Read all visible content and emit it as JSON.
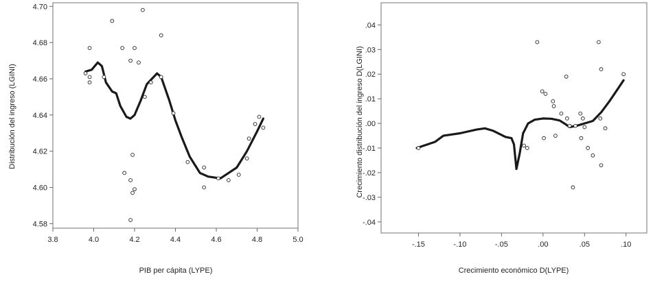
{
  "chart_data": [
    {
      "type": "scatter",
      "title": "",
      "xlabel": "PIB per cápita (LYPE)",
      "ylabel": "Distribución del ingreso (LGINI)",
      "xlim": [
        3.8,
        5.0
      ],
      "ylim": [
        4.5775,
        4.702
      ],
      "xticks": [
        3.8,
        4.0,
        4.2,
        4.4,
        4.6,
        4.8,
        5.0
      ],
      "xtick_labels": [
        "3.8",
        "4.0",
        "4.2",
        "4.4",
        "4.6",
        "4.8",
        "5.0"
      ],
      "yticks": [
        4.58,
        4.6,
        4.62,
        4.64,
        4.66,
        4.68,
        4.7
      ],
      "ytick_labels": [
        "4.58",
        "4.60",
        "4.62",
        "4.64",
        "4.66",
        "4.68",
        "4.70"
      ],
      "grid": false,
      "points": [
        [
          3.96,
          4.663
        ],
        [
          3.98,
          4.677
        ],
        [
          3.98,
          4.661
        ],
        [
          3.98,
          4.658
        ],
        [
          4.05,
          4.661
        ],
        [
          4.09,
          4.692
        ],
        [
          4.14,
          4.677
        ],
        [
          4.24,
          4.698
        ],
        [
          4.2,
          4.677
        ],
        [
          4.18,
          4.67
        ],
        [
          4.22,
          4.669
        ],
        [
          4.33,
          4.684
        ],
        [
          4.33,
          4.661
        ],
        [
          4.28,
          4.658
        ],
        [
          4.25,
          4.65
        ],
        [
          4.39,
          4.641
        ],
        [
          4.19,
          4.618
        ],
        [
          4.15,
          4.608
        ],
        [
          4.18,
          4.604
        ],
        [
          4.2,
          4.599
        ],
        [
          4.19,
          4.597
        ],
        [
          4.18,
          4.582
        ],
        [
          4.46,
          4.614
        ],
        [
          4.54,
          4.611
        ],
        [
          4.54,
          4.6
        ],
        [
          4.61,
          4.605
        ],
        [
          4.66,
          4.604
        ],
        [
          4.71,
          4.607
        ],
        [
          4.75,
          4.616
        ],
        [
          4.76,
          4.627
        ],
        [
          4.79,
          4.635
        ],
        [
          4.81,
          4.639
        ],
        [
          4.83,
          4.633
        ]
      ],
      "smooth_line": [
        [
          3.96,
          4.664
        ],
        [
          3.99,
          4.665
        ],
        [
          4.02,
          4.669
        ],
        [
          4.04,
          4.667
        ],
        [
          4.06,
          4.658
        ],
        [
          4.09,
          4.653
        ],
        [
          4.11,
          4.652
        ],
        [
          4.13,
          4.645
        ],
        [
          4.16,
          4.639
        ],
        [
          4.18,
          4.638
        ],
        [
          4.2,
          4.64
        ],
        [
          4.23,
          4.648
        ],
        [
          4.26,
          4.657
        ],
        [
          4.31,
          4.663
        ],
        [
          4.33,
          4.661
        ],
        [
          4.37,
          4.648
        ],
        [
          4.4,
          4.637
        ],
        [
          4.43,
          4.628
        ],
        [
          4.47,
          4.617
        ],
        [
          4.52,
          4.608
        ],
        [
          4.56,
          4.606
        ],
        [
          4.62,
          4.605
        ],
        [
          4.66,
          4.608
        ],
        [
          4.7,
          4.611
        ],
        [
          4.75,
          4.62
        ],
        [
          4.8,
          4.631
        ],
        [
          4.83,
          4.638
        ]
      ]
    },
    {
      "type": "scatter",
      "title": "",
      "xlabel": "Crecimiento económico D(LYPE)",
      "ylabel": "Crecimiento distribución del ingreso D(LGINI)",
      "xlim": [
        -0.195,
        0.125
      ],
      "ylim": [
        -0.0445,
        0.049
      ],
      "xticks": [
        -0.15,
        -0.1,
        -0.05,
        0.0,
        0.05,
        0.1
      ],
      "xtick_labels": [
        "-.15",
        "-.10",
        "-.05",
        ".00",
        ".05",
        ".10"
      ],
      "yticks": [
        -0.04,
        -0.03,
        -0.02,
        -0.01,
        0.0,
        0.01,
        0.02,
        0.03,
        0.04
      ],
      "ytick_labels": [
        "-.04",
        "-.03",
        "-.02",
        "-.01",
        ".00",
        ".01",
        ".02",
        ".03",
        ".04"
      ],
      "grid": false,
      "points": [
        [
          -0.15,
          -0.01
        ],
        [
          -0.007,
          0.033
        ],
        [
          0.067,
          0.033
        ],
        [
          0.07,
          0.022
        ],
        [
          0.097,
          0.02
        ],
        [
          0.028,
          0.019
        ],
        [
          -0.001,
          0.013
        ],
        [
          0.003,
          0.012
        ],
        [
          0.012,
          0.009
        ],
        [
          0.013,
          0.007
        ],
        [
          0.022,
          0.004
        ],
        [
          0.029,
          0.002
        ],
        [
          0.045,
          0.004
        ],
        [
          0.048,
          0.002
        ],
        [
          0.069,
          0.002
        ],
        [
          0.032,
          -0.001
        ],
        [
          0.039,
          -0.001
        ],
        [
          0.05,
          -0.0015
        ],
        [
          0.075,
          -0.002
        ],
        [
          0.015,
          -0.005
        ],
        [
          0.001,
          -0.006
        ],
        [
          0.046,
          -0.006
        ],
        [
          -0.023,
          -0.009
        ],
        [
          -0.019,
          -0.01
        ],
        [
          0.054,
          -0.01
        ],
        [
          0.06,
          -0.013
        ],
        [
          0.07,
          -0.017
        ],
        [
          0.036,
          -0.026
        ]
      ],
      "smooth_line": [
        [
          -0.152,
          -0.01
        ],
        [
          -0.13,
          -0.0075
        ],
        [
          -0.12,
          -0.005
        ],
        [
          -0.1,
          -0.004
        ],
        [
          -0.08,
          -0.0025
        ],
        [
          -0.07,
          -0.002
        ],
        [
          -0.06,
          -0.003
        ],
        [
          -0.045,
          -0.0055
        ],
        [
          -0.038,
          -0.006
        ],
        [
          -0.035,
          -0.0085
        ],
        [
          -0.032,
          -0.0185
        ],
        [
          -0.028,
          -0.012
        ],
        [
          -0.024,
          -0.004
        ],
        [
          -0.018,
          0.0
        ],
        [
          -0.01,
          0.0015
        ],
        [
          0.0,
          0.002
        ],
        [
          0.01,
          0.0019
        ],
        [
          0.02,
          0.0012
        ],
        [
          0.027,
          -0.0003
        ],
        [
          0.032,
          -0.0015
        ],
        [
          0.04,
          -0.001
        ],
        [
          0.05,
          0.0
        ],
        [
          0.06,
          0.001
        ],
        [
          0.07,
          0.0045
        ],
        [
          0.08,
          0.009
        ],
        [
          0.09,
          0.014
        ],
        [
          0.097,
          0.0175
        ]
      ]
    }
  ]
}
